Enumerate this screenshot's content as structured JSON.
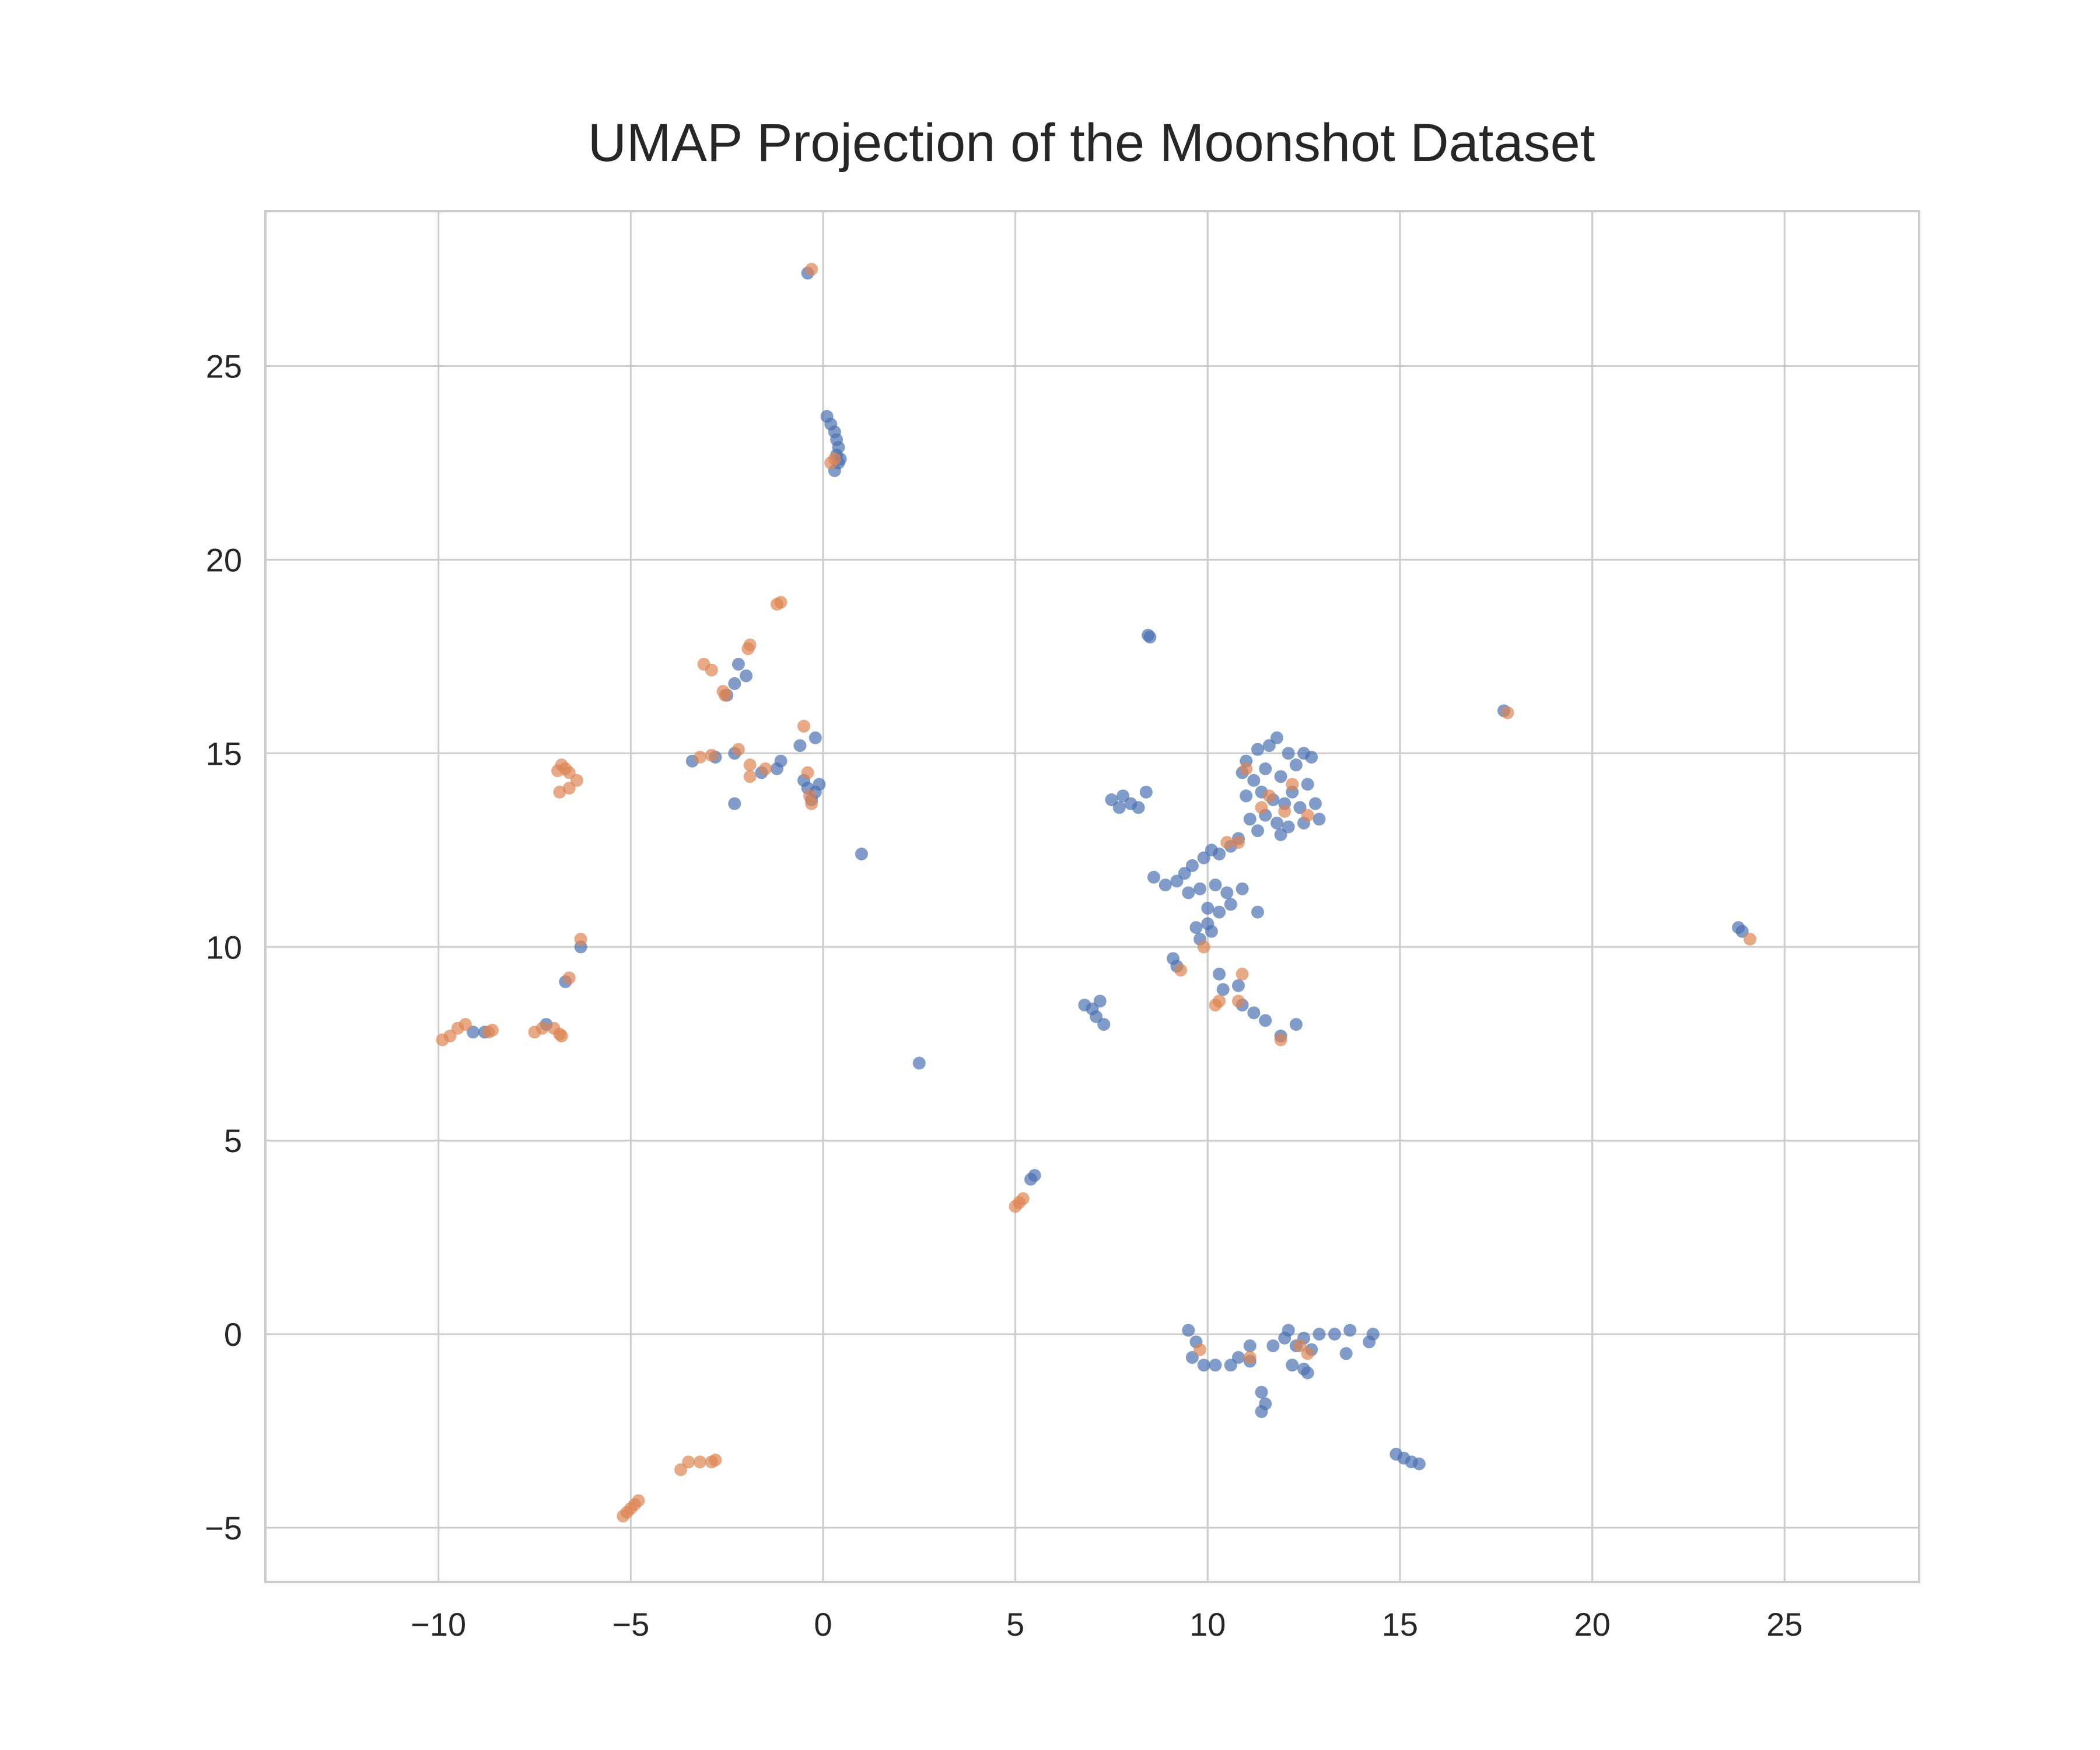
{
  "chart_data": {
    "type": "scatter",
    "title": "UMAP Projection of the Moonshot Dataset",
    "xlabel": "",
    "ylabel": "",
    "xlim": [
      -14.5,
      28.5
    ],
    "ylim": [
      -6.4,
      29.0
    ],
    "xticks": [
      -10,
      -5,
      0,
      5,
      10,
      15,
      20,
      25
    ],
    "yticks": [
      -5,
      0,
      5,
      10,
      15,
      20,
      25
    ],
    "xtick_labels": [
      "−10",
      "−5",
      "0",
      "5",
      "10",
      "15",
      "20",
      "25"
    ],
    "ytick_labels": [
      "−5",
      "0",
      "5",
      "10",
      "15",
      "20",
      "25"
    ],
    "grid": true,
    "legend": "none",
    "point_opacity": 0.7,
    "series": [
      {
        "color": "#4c72b0",
        "points": [
          [
            -0.4,
            27.4
          ],
          [
            0.1,
            23.7
          ],
          [
            0.2,
            23.5
          ],
          [
            0.3,
            23.3
          ],
          [
            0.35,
            23.1
          ],
          [
            0.4,
            22.9
          ],
          [
            0.35,
            22.7
          ],
          [
            0.4,
            22.5
          ],
          [
            0.3,
            22.3
          ],
          [
            0.45,
            22.6
          ],
          [
            8.5,
            18.0
          ],
          [
            8.45,
            18.05
          ],
          [
            -2.2,
            17.3
          ],
          [
            -2.0,
            17.0
          ],
          [
            -2.5,
            16.5
          ],
          [
            -2.3,
            16.8
          ],
          [
            -3.4,
            14.8
          ],
          [
            -2.8,
            14.9
          ],
          [
            -2.3,
            15.0
          ],
          [
            -1.6,
            14.5
          ],
          [
            -1.1,
            14.8
          ],
          [
            -0.6,
            15.2
          ],
          [
            -0.2,
            15.4
          ],
          [
            -0.5,
            14.3
          ],
          [
            -0.2,
            14.0
          ],
          [
            -0.3,
            13.8
          ],
          [
            -0.1,
            14.2
          ],
          [
            -1.2,
            14.6
          ],
          [
            -2.3,
            13.7
          ],
          [
            -0.4,
            14.1
          ],
          [
            1.0,
            12.4
          ],
          [
            -6.3,
            10.0
          ],
          [
            -6.7,
            9.1
          ],
          [
            -9.1,
            7.8
          ],
          [
            -8.8,
            7.8
          ],
          [
            -7.2,
            8.0
          ],
          [
            2.5,
            7.0
          ],
          [
            5.4,
            4.0
          ],
          [
            5.5,
            4.1
          ],
          [
            17.7,
            16.1
          ],
          [
            23.8,
            10.5
          ],
          [
            23.9,
            10.4
          ],
          [
            7.5,
            13.8
          ],
          [
            7.7,
            13.6
          ],
          [
            8.0,
            13.7
          ],
          [
            7.8,
            13.9
          ],
          [
            8.2,
            13.6
          ],
          [
            8.4,
            14.0
          ],
          [
            11.0,
            14.8
          ],
          [
            11.3,
            15.1
          ],
          [
            11.6,
            15.2
          ],
          [
            11.8,
            15.4
          ],
          [
            12.1,
            15.0
          ],
          [
            12.5,
            15.0
          ],
          [
            12.7,
            14.9
          ],
          [
            10.9,
            14.5
          ],
          [
            11.2,
            14.3
          ],
          [
            11.5,
            14.6
          ],
          [
            11.9,
            14.4
          ],
          [
            12.3,
            14.7
          ],
          [
            12.6,
            14.2
          ],
          [
            12.2,
            14.0
          ],
          [
            11.0,
            13.9
          ],
          [
            11.4,
            14.0
          ],
          [
            11.7,
            13.8
          ],
          [
            12.0,
            13.7
          ],
          [
            12.4,
            13.6
          ],
          [
            12.8,
            13.7
          ],
          [
            12.9,
            13.3
          ],
          [
            11.1,
            13.3
          ],
          [
            11.5,
            13.4
          ],
          [
            11.8,
            13.2
          ],
          [
            12.1,
            13.1
          ],
          [
            12.5,
            13.2
          ],
          [
            11.3,
            13.0
          ],
          [
            11.9,
            12.9
          ],
          [
            10.8,
            12.8
          ],
          [
            10.6,
            12.6
          ],
          [
            10.3,
            12.4
          ],
          [
            10.1,
            12.5
          ],
          [
            9.9,
            12.3
          ],
          [
            9.6,
            12.1
          ],
          [
            9.4,
            11.9
          ],
          [
            8.6,
            11.8
          ],
          [
            8.9,
            11.6
          ],
          [
            9.2,
            11.7
          ],
          [
            9.5,
            11.4
          ],
          [
            9.8,
            11.5
          ],
          [
            10.2,
            11.6
          ],
          [
            10.5,
            11.4
          ],
          [
            10.0,
            11.0
          ],
          [
            10.3,
            10.9
          ],
          [
            10.6,
            11.1
          ],
          [
            10.9,
            11.5
          ],
          [
            11.3,
            10.9
          ],
          [
            9.7,
            10.5
          ],
          [
            10.0,
            10.6
          ],
          [
            9.8,
            10.2
          ],
          [
            10.1,
            10.4
          ],
          [
            9.1,
            9.7
          ],
          [
            9.2,
            9.5
          ],
          [
            10.3,
            9.3
          ],
          [
            10.8,
            9.0
          ],
          [
            10.4,
            8.9
          ],
          [
            10.9,
            8.5
          ],
          [
            11.2,
            8.3
          ],
          [
            11.5,
            8.1
          ],
          [
            11.9,
            7.7
          ],
          [
            12.3,
            8.0
          ],
          [
            6.8,
            8.5
          ],
          [
            7.0,
            8.4
          ],
          [
            7.2,
            8.6
          ],
          [
            7.1,
            8.2
          ],
          [
            7.3,
            8.0
          ],
          [
            9.5,
            0.1
          ],
          [
            9.7,
            -0.2
          ],
          [
            9.6,
            -0.6
          ],
          [
            9.9,
            -0.8
          ],
          [
            10.2,
            -0.8
          ],
          [
            10.6,
            -0.8
          ],
          [
            10.8,
            -0.6
          ],
          [
            11.1,
            -0.7
          ],
          [
            11.4,
            -1.5
          ],
          [
            11.5,
            -1.8
          ],
          [
            11.4,
            -2.0
          ],
          [
            11.7,
            -0.3
          ],
          [
            12.0,
            -0.1
          ],
          [
            12.1,
            0.1
          ],
          [
            12.3,
            -0.3
          ],
          [
            12.5,
            -0.1
          ],
          [
            12.7,
            -0.4
          ],
          [
            12.2,
            -0.8
          ],
          [
            12.5,
            -0.9
          ],
          [
            12.9,
            0.0
          ],
          [
            13.3,
            0.0
          ],
          [
            13.7,
            0.1
          ],
          [
            13.6,
            -0.5
          ],
          [
            14.2,
            -0.2
          ],
          [
            14.3,
            0.0
          ],
          [
            12.6,
            -1.0
          ],
          [
            11.1,
            -0.3
          ],
          [
            14.9,
            -3.1
          ],
          [
            15.1,
            -3.2
          ],
          [
            15.3,
            -3.3
          ],
          [
            15.5,
            -3.35
          ]
        ]
      },
      {
        "color": "#dd8452",
        "points": [
          [
            -0.3,
            27.5
          ],
          [
            0.2,
            22.5
          ],
          [
            0.3,
            22.6
          ],
          [
            -1.1,
            18.9
          ],
          [
            -1.2,
            18.85
          ],
          [
            -1.9,
            17.8
          ],
          [
            -1.95,
            17.7
          ],
          [
            -3.1,
            17.3
          ],
          [
            -2.9,
            17.15
          ],
          [
            -2.6,
            16.6
          ],
          [
            -2.55,
            16.5
          ],
          [
            -3.2,
            14.9
          ],
          [
            -2.9,
            14.95
          ],
          [
            -2.2,
            15.1
          ],
          [
            -1.9,
            14.7
          ],
          [
            -1.5,
            14.6
          ],
          [
            -0.5,
            15.7
          ],
          [
            -0.4,
            14.5
          ],
          [
            -0.3,
            13.7
          ],
          [
            -0.35,
            13.9
          ],
          [
            -1.9,
            14.4
          ],
          [
            -6.8,
            14.7
          ],
          [
            -6.6,
            14.5
          ],
          [
            -6.4,
            14.3
          ],
          [
            -6.6,
            14.1
          ],
          [
            -6.85,
            14.0
          ],
          [
            -6.7,
            14.6
          ],
          [
            -6.9,
            14.55
          ],
          [
            -6.3,
            10.2
          ],
          [
            -6.6,
            9.2
          ],
          [
            -9.9,
            7.6
          ],
          [
            -9.7,
            7.7
          ],
          [
            -9.5,
            7.9
          ],
          [
            -9.3,
            8.0
          ],
          [
            -8.7,
            7.8
          ],
          [
            -8.6,
            7.85
          ],
          [
            -7.5,
            7.8
          ],
          [
            -7.3,
            7.9
          ],
          [
            -7.0,
            7.9
          ],
          [
            -6.8,
            7.7
          ],
          [
            -6.85,
            7.75
          ],
          [
            -5.2,
            -4.7
          ],
          [
            -5.1,
            -4.6
          ],
          [
            -5.0,
            -4.5
          ],
          [
            -4.9,
            -4.4
          ],
          [
            -4.8,
            -4.3
          ],
          [
            -3.7,
            -3.5
          ],
          [
            -3.5,
            -3.3
          ],
          [
            -3.2,
            -3.3
          ],
          [
            -2.9,
            -3.3
          ],
          [
            -2.8,
            -3.25
          ],
          [
            5.0,
            3.3
          ],
          [
            5.1,
            3.4
          ],
          [
            5.2,
            3.5
          ],
          [
            17.8,
            16.05
          ],
          [
            24.1,
            10.2
          ],
          [
            11.0,
            14.6
          ],
          [
            11.6,
            13.9
          ],
          [
            12.2,
            14.2
          ],
          [
            12.6,
            13.4
          ],
          [
            12.0,
            13.5
          ],
          [
            11.4,
            13.6
          ],
          [
            10.8,
            12.7
          ],
          [
            10.5,
            12.7
          ],
          [
            9.9,
            10.0
          ],
          [
            9.3,
            9.4
          ],
          [
            10.3,
            8.6
          ],
          [
            10.2,
            8.5
          ],
          [
            10.8,
            8.6
          ],
          [
            10.9,
            9.3
          ],
          [
            9.8,
            -0.4
          ],
          [
            11.1,
            -0.6
          ],
          [
            12.4,
            -0.3
          ],
          [
            12.6,
            -0.5
          ],
          [
            11.9,
            7.6
          ]
        ]
      }
    ]
  }
}
